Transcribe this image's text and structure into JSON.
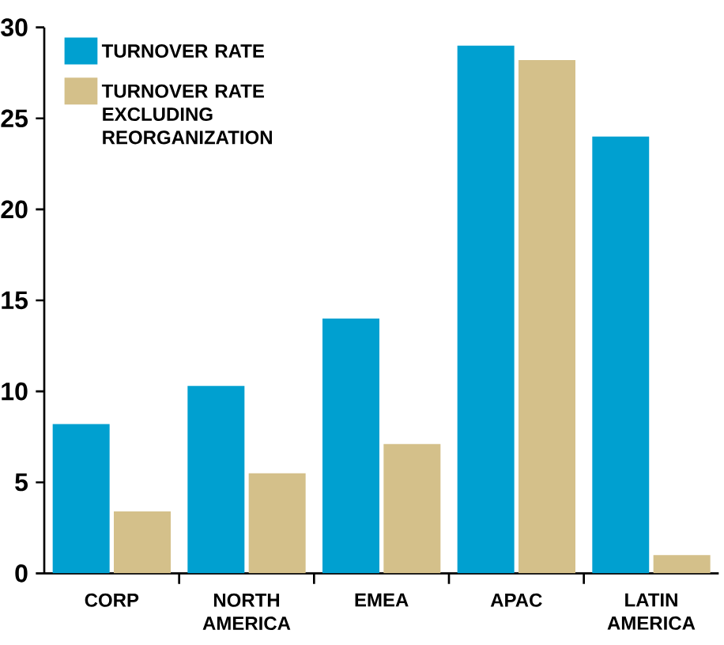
{
  "chart_data": {
    "type": "bar",
    "categories": [
      "CORP",
      "NORTH AMERICA",
      "EMEA",
      "APAC",
      "LATIN AMERICA"
    ],
    "series": [
      {
        "name": "TURNOVER RATE",
        "color": "#00a0d0",
        "values": [
          8.2,
          10.3,
          14.0,
          29.0,
          24.0
        ]
      },
      {
        "name": "TURNOVER RATE EXCLUDING REORGANIZATION",
        "color": "#d4c08a",
        "values": [
          3.4,
          5.5,
          7.1,
          28.2,
          1.0
        ]
      }
    ],
    "ylim": [
      0,
      30
    ],
    "yticks": [
      0,
      5,
      10,
      15,
      20,
      25,
      30
    ],
    "grid": false,
    "legend": "top left"
  }
}
